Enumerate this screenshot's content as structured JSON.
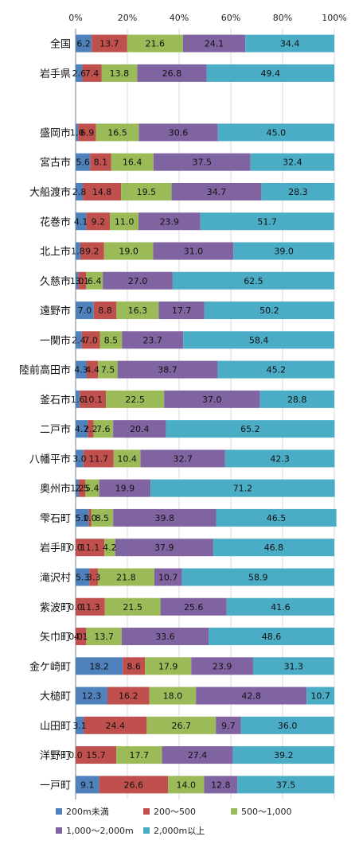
{
  "chart_data": {
    "type": "bar",
    "orientation": "horizontal",
    "stacked": "percent",
    "xlim": [
      0,
      100
    ],
    "x_ticks": [
      "0%",
      "20%",
      "40%",
      "60%",
      "80%",
      "100%"
    ],
    "grid": true,
    "legend_position": "bottom",
    "categories": [
      "全国",
      "岩手県",
      "",
      "盛岡市",
      "宮古市",
      "大船渡市",
      "花巻市",
      "北上市",
      "久慈市",
      "遠野市",
      "一関市",
      "陸前高田市",
      "釜石市",
      "二戸市",
      "八幡平市",
      "奥州市",
      "雫石町",
      "岩手町",
      "滝沢村",
      "紫波町",
      "矢巾町",
      "金ケ崎町",
      "大槌町",
      "山田町",
      "洋野町",
      "一戸町"
    ],
    "series": [
      {
        "name": "200m未満",
        "color": "#4f81bd",
        "values": [
          6.2,
          2.6,
          null,
          1.0,
          5.6,
          2.8,
          4.1,
          1.8,
          1.0,
          7.0,
          2.4,
          4.3,
          1.6,
          4.7,
          3.0,
          1.2,
          5.0,
          0.0,
          5.3,
          0.0,
          0.0,
          18.2,
          12.3,
          3.1,
          0.0,
          9.1
        ],
        "labels": [
          "6.2",
          "2.6",
          "",
          "1.0",
          "5.6",
          "2.8",
          "4.1",
          "1.8",
          "1.0",
          "7.0",
          "2.4",
          "4.3",
          "1.6",
          "4.7",
          "3.0",
          "1.2",
          "5.0",
          "0.0",
          "5.3",
          "0.0",
          "0.0",
          "18.2",
          "12.3",
          "3.1",
          "0.0",
          "9.1"
        ]
      },
      {
        "name": "200～500",
        "color": "#c0504d",
        "values": [
          13.7,
          7.4,
          null,
          6.9,
          8.1,
          14.8,
          9.2,
          9.2,
          3.1,
          8.8,
          7.0,
          4.4,
          10.1,
          2.2,
          11.7,
          2.5,
          1.0,
          11.1,
          3.3,
          11.3,
          4.1,
          8.6,
          16.2,
          24.4,
          15.7,
          26.6
        ],
        "labels": [
          "13.7",
          "7.4",
          "",
          "6.9",
          "8.1",
          "14.8",
          "9.2",
          "9.2",
          "3.1",
          "8.8",
          "7.0",
          "4.4",
          "10.1",
          "2.2",
          "11.7",
          "2.5",
          "1.0",
          "11.1",
          "3.3",
          "11.3",
          "4.1",
          "8.6",
          "16.2",
          "24.4",
          "15.7",
          "26.6"
        ]
      },
      {
        "name": "500～1,000",
        "color": "#9bbb59",
        "values": [
          21.6,
          13.8,
          null,
          16.5,
          16.4,
          19.5,
          11.0,
          19.0,
          6.4,
          16.3,
          8.5,
          7.5,
          22.5,
          7.6,
          10.4,
          5.4,
          8.5,
          4.2,
          21.8,
          21.5,
          13.7,
          17.9,
          18.0,
          26.7,
          17.7,
          14.0
        ],
        "labels": [
          "21.6",
          "13.8",
          "",
          "16.5",
          "16.4",
          "19.5",
          "11.0",
          "19.0",
          "6.4",
          "16.3",
          "8.5",
          "7.5",
          "22.5",
          "7.6",
          "10.4",
          "5.4",
          "8.5",
          "4.2",
          "21.8",
          "21.5",
          "13.7",
          "17.9",
          "18.0",
          "26.7",
          "17.7",
          "14.0"
        ]
      },
      {
        "name": "1,000～2,000m",
        "color": "#8064a2",
        "values": [
          24.1,
          26.8,
          null,
          30.6,
          37.5,
          34.7,
          23.9,
          31.0,
          27.0,
          17.7,
          23.7,
          38.7,
          37.0,
          20.4,
          32.7,
          19.9,
          39.8,
          37.9,
          10.7,
          25.6,
          33.6,
          23.9,
          42.8,
          9.7,
          27.4,
          12.8
        ],
        "labels": [
          "24.1",
          "26.8",
          "",
          "30.6",
          "37.5",
          "34.7",
          "23.9",
          "31.0",
          "27.0",
          "17.7",
          "23.7",
          "38.7",
          "37.0",
          "20.4",
          "32.7",
          "19.9",
          "39.8",
          "37.9",
          "10.7",
          "25.6",
          "33.6",
          "23.9",
          "42.8",
          "9.7",
          "27.4",
          "12.8"
        ]
      },
      {
        "name": "2,000m以上",
        "color": "#4bacc6",
        "values": [
          34.4,
          49.4,
          null,
          45.0,
          32.4,
          28.3,
          51.7,
          39.0,
          62.5,
          50.2,
          58.4,
          45.2,
          28.8,
          65.2,
          42.3,
          71.2,
          46.5,
          46.8,
          58.9,
          41.6,
          48.6,
          31.3,
          10.7,
          36.0,
          39.2,
          37.5
        ],
        "labels": [
          "34.4",
          "49.4",
          "",
          "45.0",
          "32.4",
          "28.3",
          "51.7",
          "39.0",
          "62.5",
          "50.2",
          "58.4",
          "45.2",
          "28.8",
          "65.2",
          "42.3",
          "71.2",
          "46.5",
          "46.8",
          "58.9",
          "41.6",
          "48.6",
          "31.3",
          "10.7",
          "36.0",
          "39.2",
          "37.5"
        ]
      }
    ]
  }
}
